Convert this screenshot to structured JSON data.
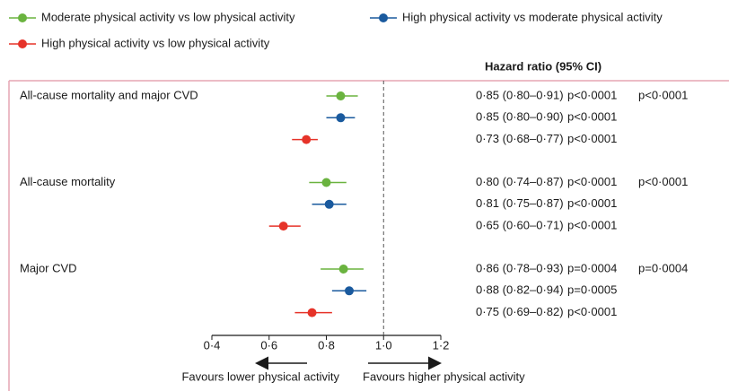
{
  "chart_data": {
    "type": "forest",
    "column_header": "Hazard ratio (95% CI)",
    "categories": [
      "All-cause mortality and major CVD",
      "All-cause mortality",
      "Major CVD"
    ],
    "group_p_values": [
      "p<0·0001",
      "p<0·0001",
      "p=0·0004"
    ],
    "series": [
      {
        "name": "Moderate physical activity vs low physical activity",
        "color": "#6ab33f",
        "values": [
          0.85,
          0.8,
          0.86
        ],
        "lower": [
          0.8,
          0.74,
          0.78
        ],
        "upper": [
          0.91,
          0.87,
          0.93
        ],
        "value_labels": [
          "0·85 (0·80–0·91)",
          "0·80 (0·74–0·87)",
          "0·86 (0·78–0·93)"
        ],
        "p_values": [
          "p<0·0001",
          "p<0·0001",
          "p=0·0004"
        ]
      },
      {
        "name": "High physical activity vs moderate physical activity",
        "color": "#1a5a9e",
        "values": [
          0.85,
          0.81,
          0.88
        ],
        "lower": [
          0.8,
          0.75,
          0.82
        ],
        "upper": [
          0.9,
          0.87,
          0.94
        ],
        "value_labels": [
          "0·85 (0·80–0·90)",
          "0·81 (0·75–0·87)",
          "0·88 (0·82–0·94)"
        ],
        "p_values": [
          "p<0·0001",
          "p<0·0001",
          "p=0·0005"
        ]
      },
      {
        "name": "High physical activity vs low physical activity",
        "color": "#e63329",
        "values": [
          0.73,
          0.65,
          0.75
        ],
        "lower": [
          0.68,
          0.6,
          0.69
        ],
        "upper": [
          0.77,
          0.71,
          0.82
        ],
        "value_labels": [
          "0·73 (0·68–0·77)",
          "0·65 (0·60–0·71)",
          "0·75 (0·69–0·82)"
        ],
        "p_values": [
          "p<0·0001",
          "p<0·0001",
          "p<0·0001"
        ]
      }
    ],
    "reference": 1,
    "xlim": [
      0.4,
      1.2
    ],
    "xticks": [
      {
        "value": 0.4,
        "label": "0·4"
      },
      {
        "value": 0.6,
        "label": "0·6"
      },
      {
        "value": 0.8,
        "label": "0·8"
      },
      {
        "value": 1.0,
        "label": "1·0"
      },
      {
        "value": 1.2,
        "label": "1·2"
      }
    ],
    "left_direction_label": "Favours lower physical activity",
    "right_direction_label": "Favours higher physical activity"
  }
}
